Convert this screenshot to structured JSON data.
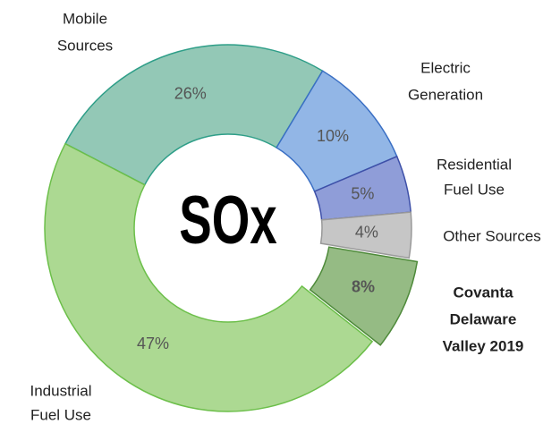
{
  "chart_data": {
    "type": "donut",
    "center_label": "SOx",
    "categories": [
      [
        "Mobile",
        "Sources"
      ],
      [
        "Electric",
        "Generation"
      ],
      [
        "Residential",
        "Fuel Use"
      ],
      [
        "Other Sources"
      ],
      [
        "Covanta",
        "Delaware",
        "Valley 2019"
      ],
      [
        "Industrial",
        "Fuel Use"
      ]
    ],
    "values": [
      26,
      10,
      5,
      4,
      8,
      47
    ],
    "value_labels": [
      "26%",
      "10%",
      "5%",
      "4%",
      "8%",
      "47%"
    ],
    "colors": [
      "#93c8b6",
      "#92b6e6",
      "#8f9dd8",
      "#c6c6c6",
      "#95bb84",
      "#acd992"
    ],
    "exploded": [
      false,
      false,
      false,
      false,
      true,
      false
    ],
    "start_angle": -62.6
  }
}
